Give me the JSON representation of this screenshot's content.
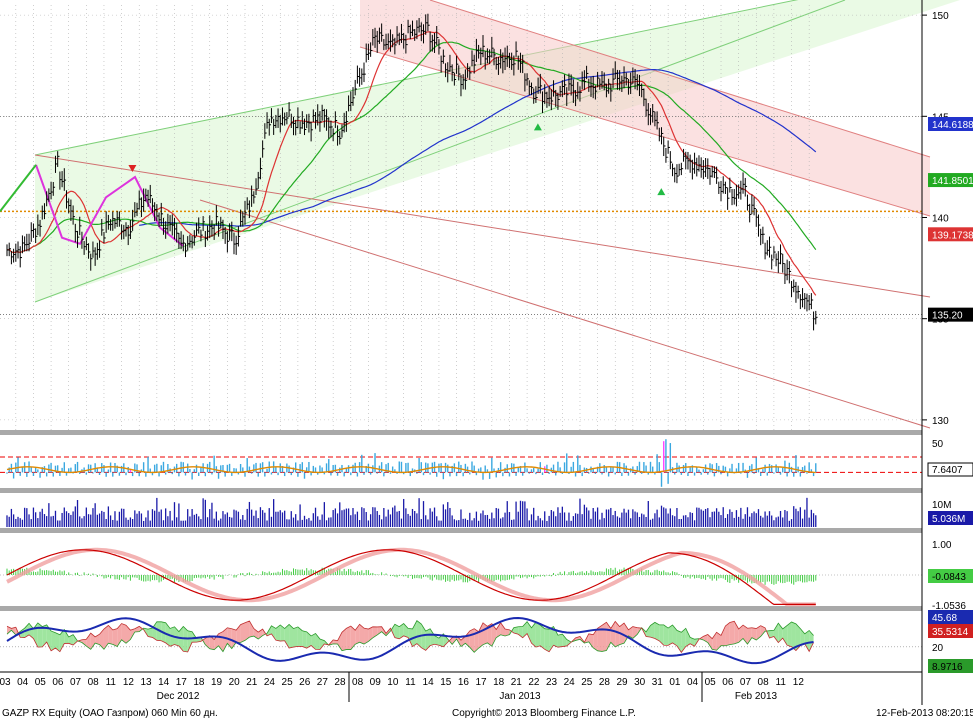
{
  "chart_data": {
    "type": "line",
    "price_axis": {
      "ylim": [
        129.5,
        150.5
      ],
      "ticks": [
        150,
        145,
        140,
        135,
        130
      ]
    },
    "x_axis": {
      "day_labels": [
        "03",
        "04",
        "05",
        "06",
        "07",
        "08",
        "11",
        "12",
        "13",
        "14",
        "17",
        "18",
        "19",
        "20",
        "21",
        "24",
        "25",
        "26",
        "27",
        "28",
        "08",
        "09",
        "10",
        "11",
        "14",
        "15",
        "16",
        "17",
        "18",
        "21",
        "22",
        "23",
        "24",
        "25",
        "28",
        "29",
        "30",
        "31",
        "01",
        "04",
        "05",
        "06",
        "07",
        "08",
        "11",
        "12"
      ],
      "month_labels": [
        "Dec 2012",
        "Jan 2013",
        "Feb 2013"
      ]
    },
    "price_series": {
      "name": "GAZP RX Equity",
      "close": [
        138.4,
        139.8,
        142.6,
        139.5,
        138.1,
        139.9,
        139.5,
        141.1,
        139.8,
        138.6,
        139.3,
        139.6,
        138.9,
        140.8,
        144.9,
        145.1,
        144.7,
        144.9,
        144.3,
        146.6,
        148.8,
        148.4,
        149.1,
        149.3,
        147.6,
        146.9,
        148.2,
        147.9,
        148.0,
        146.3,
        146.0,
        146.2,
        146.7,
        146.4,
        146.9,
        146.5,
        144.3,
        142.4,
        142.8,
        142.3,
        141.4,
        141.2,
        138.8,
        137.8,
        136.5,
        135.2
      ],
      "last_value": "135.20"
    },
    "moving_averages": [
      {
        "color": "#2233cc",
        "last_value": "144.6188"
      },
      {
        "color": "#22aa22",
        "last_value": "141.8501"
      },
      {
        "color": "#dd3333",
        "last_value": "139.1738"
      }
    ],
    "horizontal_level": {
      "value": 140.3,
      "color": "#e08a00"
    },
    "markers": [
      {
        "kind": "down-triangle",
        "day_index": 7,
        "value": 142.2,
        "color": "#dd2222"
      },
      {
        "kind": "up-triangle",
        "day_index": 30,
        "value": 144.7,
        "color": "#22bb44"
      },
      {
        "kind": "up-triangle",
        "day_index": 37,
        "value": 141.5,
        "color": "#22bb44"
      }
    ],
    "panels": [
      {
        "id": "oscillator",
        "ticks": [
          "50"
        ],
        "last_value": "7.6407",
        "last_color": "#000000"
      },
      {
        "id": "volume",
        "ticks": [
          "10M"
        ],
        "last_value": "5.036M",
        "last_color": "#ffffff"
      },
      {
        "id": "macd",
        "ticks": [
          "1.00",
          "-1.0536"
        ],
        "last_value": "-0.0843",
        "last_color": "#000000"
      },
      {
        "id": "dmi",
        "ticks": [
          "20"
        ],
        "values": [
          "45.68",
          "35.5314",
          "8.9716"
        ]
      }
    ]
  },
  "footer": {
    "left": "GAZP RX Equity (ОАО Газпром) 060 Min 60 дн.",
    "center": "Copyright© 2013 Bloomberg Finance L.P.",
    "right": "12-Feb-2013 08:20:15"
  }
}
